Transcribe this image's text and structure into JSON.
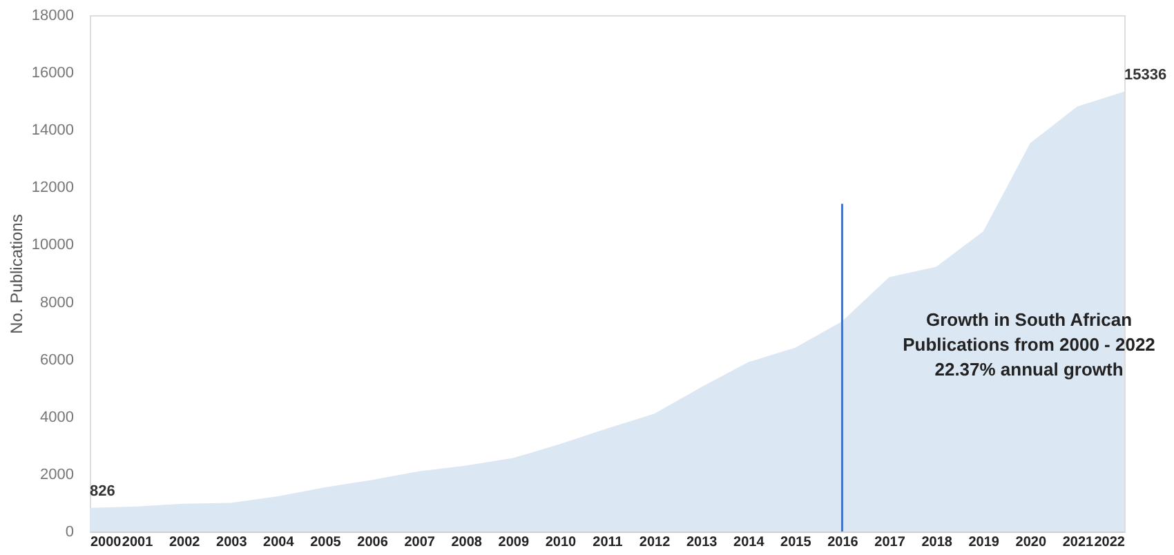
{
  "chart_data": {
    "type": "area",
    "ylabel": "No. Publications",
    "x": [
      2000,
      2001,
      2002,
      2003,
      2004,
      2005,
      2006,
      2007,
      2008,
      2009,
      2010,
      2011,
      2012,
      2013,
      2014,
      2015,
      2016,
      2017,
      2018,
      2019,
      2020,
      2021,
      2022
    ],
    "series": [
      {
        "color": "#dce7f4",
        "values": [
          826,
          870,
          970,
          1000,
          1230,
          1540,
          1800,
          2100,
          2300,
          2560,
          3050,
          3590,
          4100,
          5030,
          5900,
          6410,
          7330,
          8870,
          9230,
          10460,
          13540,
          14820,
          15336
        ],
        "value_labels": [
          "826",
          null,
          null,
          null,
          null,
          null,
          null,
          null,
          null,
          null,
          null,
          null,
          null,
          null,
          null,
          null,
          null,
          null,
          null,
          null,
          null,
          null,
          "15336"
        ]
      }
    ],
    "xlim": [
      2000,
      2022
    ],
    "xticks": [
      2000,
      2001,
      2002,
      2003,
      2004,
      2005,
      2006,
      2007,
      2008,
      2009,
      2010,
      2011,
      2012,
      2013,
      2014,
      2015,
      2016,
      2017,
      2018,
      2019,
      2020,
      2021,
      2022
    ],
    "ylim": [
      0,
      18000
    ],
    "yticks": [
      0,
      2000,
      4000,
      6000,
      8000,
      10000,
      12000,
      14000,
      16000,
      18000
    ],
    "grid": false,
    "ref_lines": [
      {
        "axis": "x",
        "value": 2016,
        "color": "#4472c4"
      }
    ],
    "annotations": [
      "Growth in South African\nPublications from 2000 - 2022\n22.37% annual growth"
    ]
  }
}
